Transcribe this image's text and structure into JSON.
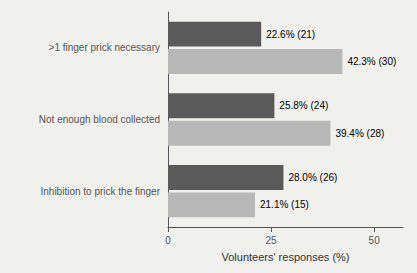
{
  "chart_data": {
    "type": "bar",
    "orientation": "horizontal",
    "categories": [
      ">1 finger prick necessary",
      "Not enough blood collected",
      "Inhibition to prick the finger"
    ],
    "series": [
      {
        "color": "#5a5a5a",
        "values": [
          22.6,
          25.8,
          28.0
        ],
        "value_labels": [
          "22.6% (21)",
          "25.8% (24)",
          "28.0% (26)"
        ]
      },
      {
        "color": "#b8b8b8",
        "values": [
          42.3,
          39.4,
          21.1
        ],
        "value_labels": [
          "42.3% (30)",
          "39.4% (28)",
          "21.1% (15)"
        ]
      }
    ],
    "xlabel": "Volunteers' responses (%)",
    "xlim": [
      0,
      57
    ],
    "xticks": [
      0,
      25,
      50
    ],
    "data_labels": true,
    "grid": false
  }
}
